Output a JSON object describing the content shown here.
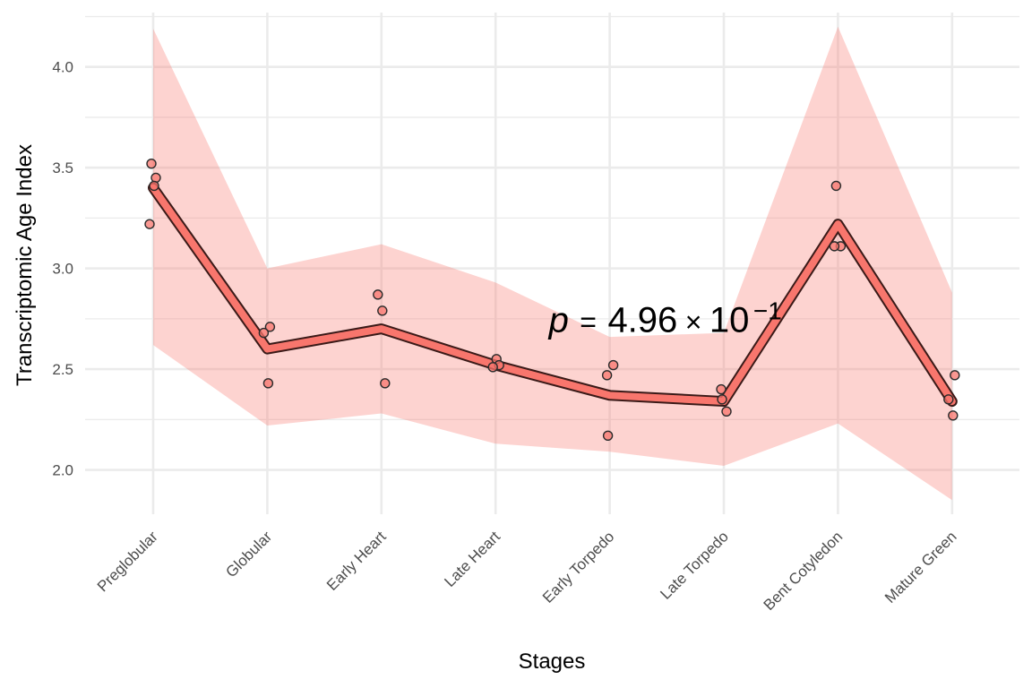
{
  "chart_data": {
    "type": "line",
    "xlabel": "Stages",
    "ylabel": "Transcriptomic Age Index",
    "categories": [
      "Preglobular",
      "Globular",
      "Early Heart",
      "Late Heart",
      "Early Torpedo",
      "Late Torpedo",
      "Bent Cotyledon",
      "Mature Green"
    ],
    "ylim": [
      1.78,
      4.27
    ],
    "yticks": [
      2.0,
      2.5,
      3.0,
      3.5,
      4.0
    ],
    "ytick_labels": [
      "2.0",
      "2.5",
      "3.0",
      "3.5",
      "4.0"
    ],
    "grid": true,
    "legend": "none",
    "line": {
      "values": [
        3.4,
        2.6,
        2.7,
        2.52,
        2.37,
        2.34,
        3.22,
        2.34
      ]
    },
    "ribbon": {
      "lower": [
        2.62,
        2.22,
        2.28,
        2.13,
        2.09,
        2.02,
        2.23,
        1.85
      ],
      "upper": [
        4.19,
        3.0,
        3.12,
        2.93,
        2.66,
        2.68,
        4.2,
        2.88
      ]
    },
    "points": [
      {
        "stage": "Preglobular",
        "values": [
          3.52,
          3.45,
          3.22,
          3.41
        ]
      },
      {
        "stage": "Globular",
        "values": [
          2.71,
          2.68,
          2.43
        ]
      },
      {
        "stage": "Early Heart",
        "values": [
          2.87,
          2.79,
          2.43
        ]
      },
      {
        "stage": "Late Heart",
        "values": [
          2.55,
          2.52,
          2.51
        ]
      },
      {
        "stage": "Early Torpedo",
        "values": [
          2.52,
          2.47,
          2.17
        ]
      },
      {
        "stage": "Late Torpedo",
        "values": [
          2.4,
          2.35,
          2.29
        ]
      },
      {
        "stage": "Bent Cotyledon",
        "values": [
          3.41,
          3.11,
          3.11
        ]
      },
      {
        "stage": "Mature Green",
        "values": [
          2.47,
          2.35,
          2.27
        ]
      }
    ],
    "annotation": {
      "p_symbol": "p",
      "equals": "=",
      "mantissa": "4.96",
      "times": "×",
      "base": "10",
      "exponent": "−1",
      "at_stage_index": 4,
      "at_value": 2.72
    },
    "colors": {
      "line_fill": "#F8766D",
      "line_outline": "#3a1a18",
      "ribbon": "#F8766D",
      "point_fill": "#F8766D",
      "point_outline": "#2b2b2b",
      "grid": "#ebebeb"
    }
  }
}
